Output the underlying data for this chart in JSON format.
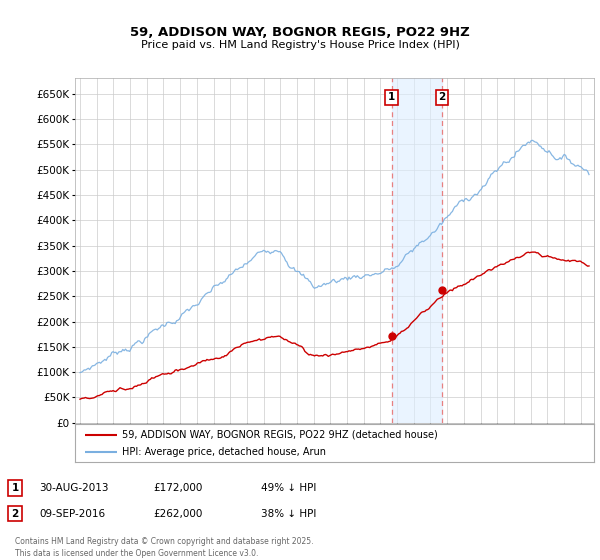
{
  "title": "59, ADDISON WAY, BOGNOR REGIS, PO22 9HZ",
  "subtitle": "Price paid vs. HM Land Registry's House Price Index (HPI)",
  "legend_line1": "59, ADDISON WAY, BOGNOR REGIS, PO22 9HZ (detached house)",
  "legend_line2": "HPI: Average price, detached house, Arun",
  "sale1_label": "1",
  "sale1_date": "30-AUG-2013",
  "sale1_price": "£172,000",
  "sale1_hpi": "49% ↓ HPI",
  "sale1_year": 2013.67,
  "sale1_value": 172000,
  "sale2_label": "2",
  "sale2_date": "09-SEP-2016",
  "sale2_price": "£262,000",
  "sale2_hpi": "38% ↓ HPI",
  "sale2_year": 2016.69,
  "sale2_value": 262000,
  "hpi_color": "#7aafe0",
  "price_color": "#cc0000",
  "shade_color": "#ddeeff",
  "ylim_min": 0,
  "ylim_max": 680000,
  "yticks": [
    0,
    50000,
    100000,
    150000,
    200000,
    250000,
    300000,
    350000,
    400000,
    450000,
    500000,
    550000,
    600000,
    650000
  ],
  "footer": "Contains HM Land Registry data © Crown copyright and database right 2025.\nThis data is licensed under the Open Government Licence v3.0.",
  "background_color": "#ffffff",
  "grid_color": "#cccccc"
}
